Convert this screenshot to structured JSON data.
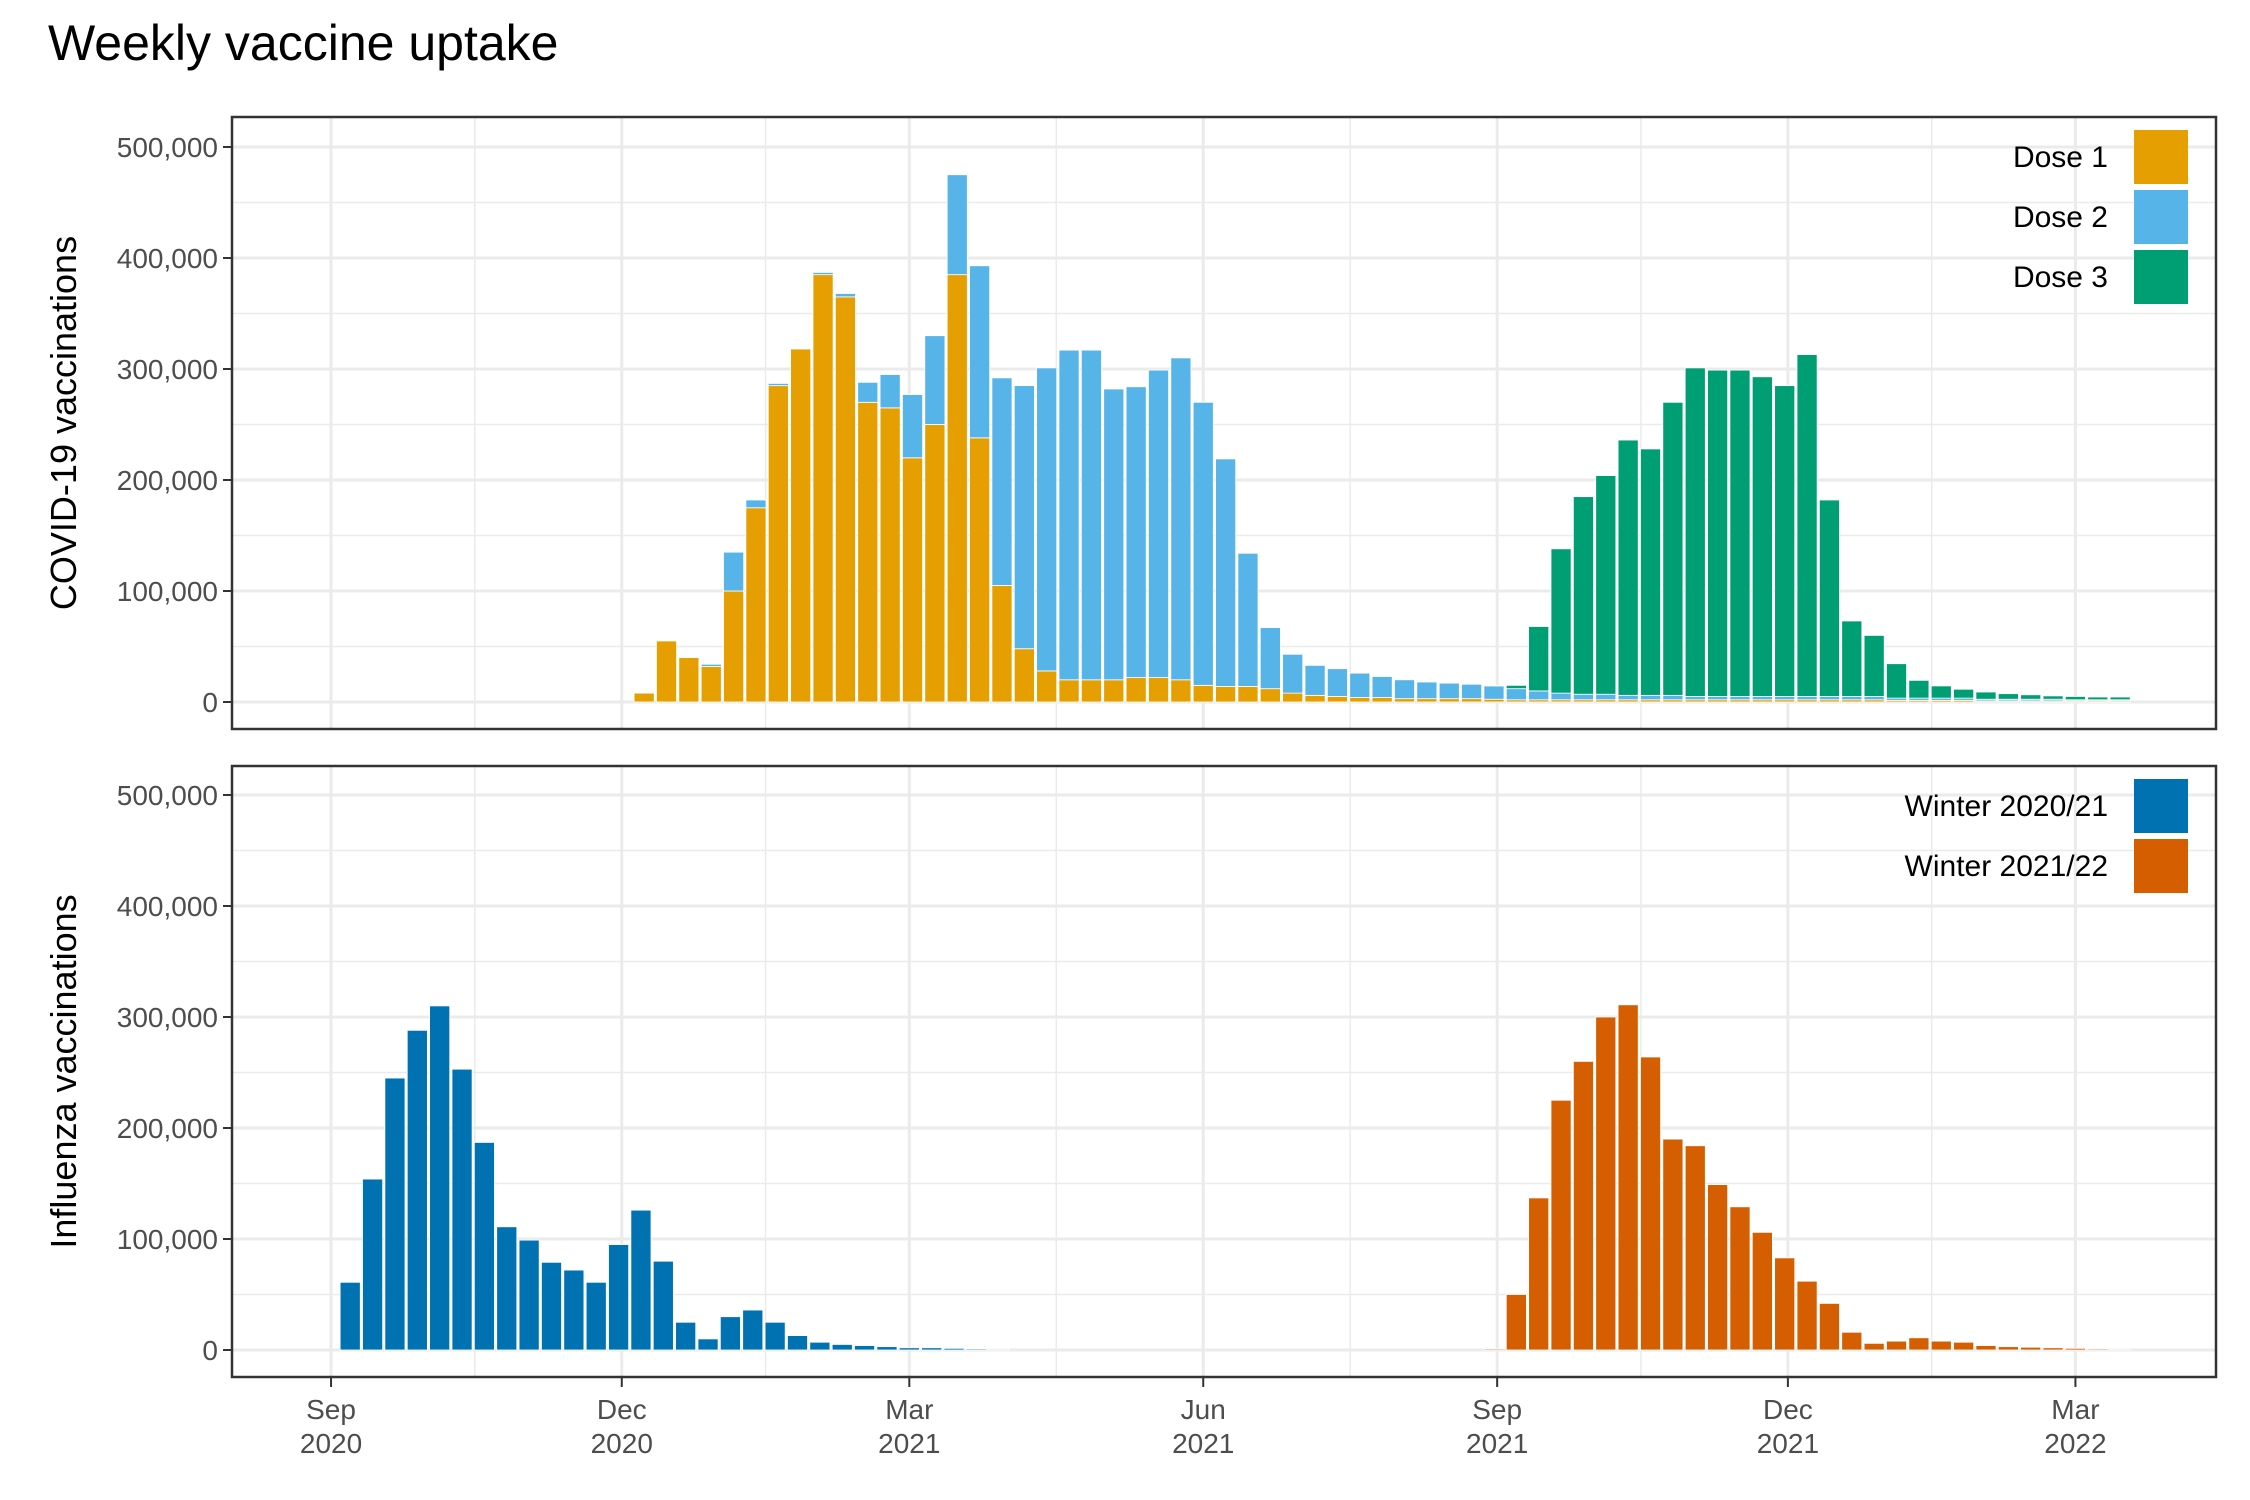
{
  "title": "Weekly vaccine uptake",
  "x_tick_labels": [
    {
      "month": "Sep",
      "year": "2020"
    },
    {
      "month": "Dec",
      "year": "2020"
    },
    {
      "month": "Mar",
      "year": "2021"
    },
    {
      "month": "Jun",
      "year": "2021"
    },
    {
      "month": "Sep",
      "year": "2021"
    },
    {
      "month": "Dec",
      "year": "2021"
    },
    {
      "month": "Mar",
      "year": "2022"
    }
  ],
  "colors": {
    "dose1": "#E69F00",
    "dose2": "#56B4E9",
    "dose3": "#009E73",
    "winter2021": "#0072B2",
    "winter2122": "#D55E00",
    "grid": "#EBEBEB",
    "panel_border": "#333333"
  },
  "chart_data": [
    {
      "type": "bar",
      "stacked": true,
      "ylabel": "COVID-19 vaccinations",
      "ylim": [
        0,
        500000
      ],
      "y_ticks": [
        "0",
        "100,000",
        "200,000",
        "300,000",
        "400,000",
        "500,000"
      ],
      "x_ticks": [
        "2020-09-01",
        "2020-12-01",
        "2021-03-01",
        "2021-06-01",
        "2021-09-01",
        "2021-12-01",
        "2022-03-01"
      ],
      "x_range": [
        "2020-08-01",
        "2022-04-14"
      ],
      "legend_position": "top-right",
      "x": [
        "2020-12-08",
        "2020-12-15",
        "2020-12-22",
        "2020-12-29",
        "2021-01-05",
        "2021-01-12",
        "2021-01-19",
        "2021-01-26",
        "2021-02-02",
        "2021-02-09",
        "2021-02-16",
        "2021-02-23",
        "2021-03-02",
        "2021-03-09",
        "2021-03-16",
        "2021-03-23",
        "2021-03-30",
        "2021-04-06",
        "2021-04-13",
        "2021-04-20",
        "2021-04-27",
        "2021-05-04",
        "2021-05-11",
        "2021-05-18",
        "2021-05-25",
        "2021-06-01",
        "2021-06-08",
        "2021-06-15",
        "2021-06-22",
        "2021-06-29",
        "2021-07-06",
        "2021-07-13",
        "2021-07-20",
        "2021-07-27",
        "2021-08-03",
        "2021-08-10",
        "2021-08-17",
        "2021-08-24",
        "2021-08-31",
        "2021-09-07",
        "2021-09-14",
        "2021-09-21",
        "2021-09-28",
        "2021-10-05",
        "2021-10-12",
        "2021-10-19",
        "2021-10-26",
        "2021-11-02",
        "2021-11-09",
        "2021-11-16",
        "2021-11-23",
        "2021-11-30",
        "2021-12-07",
        "2021-12-14",
        "2021-12-21",
        "2021-12-28",
        "2022-01-04",
        "2022-01-11",
        "2022-01-18",
        "2022-01-25",
        "2022-02-01",
        "2022-02-08",
        "2022-02-15",
        "2022-02-22",
        "2022-03-01",
        "2022-03-08",
        "2022-03-15"
      ],
      "series": [
        {
          "name": "Dose 1",
          "values": [
            8000,
            55000,
            40000,
            32000,
            100000,
            175000,
            285000,
            318000,
            385000,
            365000,
            270000,
            265000,
            220000,
            250000,
            385000,
            238000,
            105000,
            48000,
            28000,
            20000,
            20000,
            20000,
            22000,
            22000,
            20000,
            15000,
            14000,
            14000,
            12000,
            8000,
            6000,
            5000,
            4000,
            4000,
            3000,
            3000,
            3000,
            3000,
            2500,
            2000,
            2000,
            2000,
            2000,
            2000,
            2000,
            2000,
            2000,
            2000,
            2000,
            2000,
            2000,
            2000,
            2000,
            2000,
            2000,
            2000,
            1500,
            1500,
            1500,
            1500,
            1000,
            1000,
            1000,
            1000,
            1000,
            1000,
            1000
          ]
        },
        {
          "name": "Dose 2",
          "values": [
            0,
            0,
            0,
            2000,
            35000,
            7000,
            2000,
            0,
            2000,
            3000,
            18000,
            30000,
            57000,
            80000,
            90000,
            155000,
            187000,
            237000,
            273000,
            297000,
            297000,
            262000,
            262000,
            277000,
            290000,
            255000,
            205000,
            120000,
            55000,
            35000,
            27000,
            25000,
            22000,
            19000,
            17000,
            15000,
            14000,
            13000,
            12000,
            10000,
            8000,
            6000,
            5000,
            5000,
            4000,
            4000,
            4000,
            3000,
            3000,
            3000,
            3000,
            3000,
            3000,
            3000,
            3000,
            3000,
            2000,
            2000,
            2000,
            2000,
            1500,
            1500,
            1500,
            1500,
            1000,
            1000,
            1000
          ]
        },
        {
          "name": "Dose 3",
          "values": [
            0,
            0,
            0,
            0,
            0,
            0,
            0,
            0,
            0,
            0,
            0,
            0,
            0,
            0,
            0,
            0,
            0,
            0,
            0,
            0,
            0,
            0,
            0,
            0,
            0,
            0,
            0,
            0,
            0,
            0,
            0,
            0,
            0,
            0,
            0,
            0,
            0,
            0,
            500,
            3000,
            58000,
            130000,
            178000,
            197000,
            230000,
            222000,
            264000,
            296000,
            294000,
            294000,
            288000,
            280000,
            308000,
            177000,
            68000,
            55000,
            31000,
            16000,
            11000,
            8000,
            6500,
            5000,
            4000,
            3000,
            3000,
            2500,
            2500
          ]
        }
      ]
    },
    {
      "type": "bar",
      "stacked": false,
      "ylabel": "Influenza vaccinations",
      "ylim": [
        0,
        500000
      ],
      "y_ticks": [
        "0",
        "100,000",
        "200,000",
        "300,000",
        "400,000",
        "500,000"
      ],
      "x_ticks": [
        "2020-09-01",
        "2020-12-01",
        "2021-03-01",
        "2021-06-01",
        "2021-09-01",
        "2021-12-01",
        "2022-03-01"
      ],
      "x_range": [
        "2020-08-01",
        "2022-04-14"
      ],
      "legend_position": "top-right",
      "series": [
        {
          "name": "Winter 2020/21",
          "x": [
            "2020-09-07",
            "2020-09-14",
            "2020-09-21",
            "2020-09-28",
            "2020-10-05",
            "2020-10-12",
            "2020-10-19",
            "2020-10-26",
            "2020-11-02",
            "2020-11-09",
            "2020-11-16",
            "2020-11-23",
            "2020-11-30",
            "2020-12-07",
            "2020-12-14",
            "2020-12-21",
            "2020-12-28",
            "2021-01-04",
            "2021-01-11",
            "2021-01-18",
            "2021-01-25",
            "2021-02-01",
            "2021-02-08",
            "2021-02-15",
            "2021-02-22",
            "2021-03-01",
            "2021-03-08",
            "2021-03-15",
            "2021-03-22",
            "2021-03-29"
          ],
          "values": [
            61000,
            154000,
            245000,
            288000,
            310000,
            253000,
            187000,
            111000,
            99000,
            79000,
            72000,
            61000,
            95000,
            126000,
            80000,
            25000,
            10000,
            30000,
            36000,
            25000,
            13000,
            7000,
            5000,
            4000,
            3000,
            2000,
            2000,
            1500,
            1000,
            800
          ]
        },
        {
          "name": "Winter 2021/22",
          "x": [
            "2021-08-31",
            "2021-09-07",
            "2021-09-14",
            "2021-09-21",
            "2021-09-28",
            "2021-10-05",
            "2021-10-12",
            "2021-10-19",
            "2021-10-26",
            "2021-11-02",
            "2021-11-09",
            "2021-11-16",
            "2021-11-23",
            "2021-11-30",
            "2021-12-07",
            "2021-12-14",
            "2021-12-21",
            "2021-12-28",
            "2022-01-04",
            "2022-01-11",
            "2022-01-18",
            "2022-01-25",
            "2022-02-01",
            "2022-02-08",
            "2022-02-15",
            "2022-02-22",
            "2022-03-01",
            "2022-03-08",
            "2022-03-15"
          ],
          "values": [
            1000,
            50000,
            137000,
            225000,
            260000,
            300000,
            311000,
            264000,
            190000,
            184000,
            149000,
            129000,
            106000,
            83000,
            62000,
            42000,
            16000,
            6000,
            8000,
            11000,
            8000,
            7000,
            4000,
            3000,
            2500,
            2000,
            1500,
            1000,
            800
          ]
        }
      ]
    }
  ]
}
